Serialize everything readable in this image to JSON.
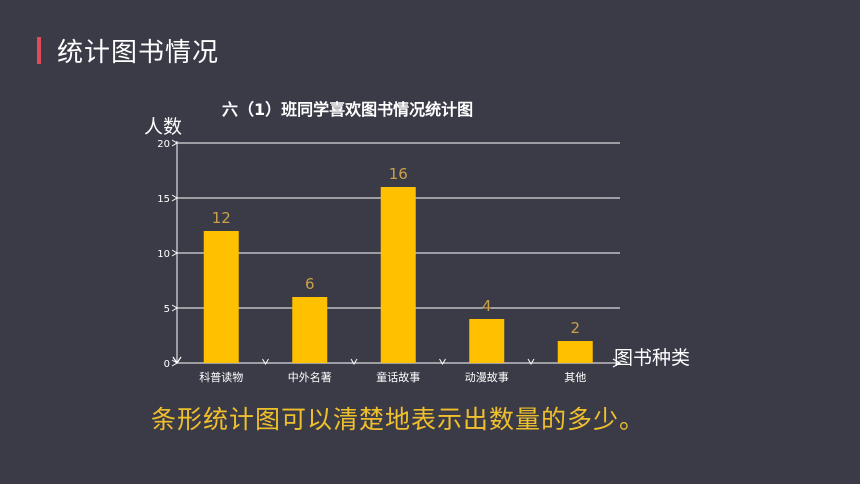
{
  "slide": {
    "title": "统计图书情况",
    "caption": "条形统计图可以清楚地表示出数量的多少。"
  },
  "colors": {
    "background": "#3b3b48",
    "accent": "#e04b5a",
    "bar": "#ffc000",
    "value_label": "#c9a14a",
    "caption": "#f0c02c"
  },
  "chart_data": {
    "type": "bar",
    "title": "六（1）班同学喜欢图书情况统计图",
    "xlabel": "图书种类",
    "ylabel": "人数",
    "categories": [
      "科普读物",
      "中外名著",
      "童话故事",
      "动漫故事",
      "其他"
    ],
    "values": [
      12,
      6,
      16,
      4,
      2
    ],
    "ylim": [
      0,
      20
    ],
    "yticks": [
      0,
      5,
      10,
      15,
      20
    ],
    "grid": true,
    "legend": "none"
  }
}
